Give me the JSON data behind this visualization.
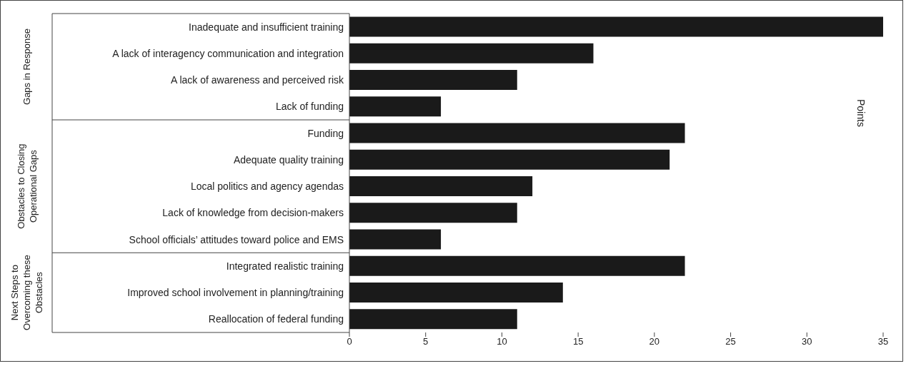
{
  "chart_data": {
    "type": "bar",
    "orientation": "horizontal",
    "categories": [
      "Inadequate and insufficient training",
      "A lack of interagency communication and integration",
      "A lack of awareness and perceived risk",
      "Lack of funding",
      "Funding",
      "Adequate quality training",
      "Local politics and agency agendas",
      "Lack of knowledge from decision-makers",
      "School officials’ attitudes toward police and EMS",
      "Integrated realistic training",
      "Improved school involvement in planning/training",
      "Reallocation of federal funding"
    ],
    "values": [
      35,
      16,
      11,
      6,
      22,
      21,
      12,
      11,
      6,
      22,
      14,
      11
    ],
    "color": "#1a1a1a",
    "xlim": [
      0,
      35
    ],
    "xticks": [
      0,
      5,
      10,
      15,
      20,
      25,
      30,
      35
    ],
    "grid": false,
    "legend": false,
    "annotations": [
      "Gaps in Response",
      "Obstacles to Closing Operational Gaps",
      "Next Steps to Overcoming these Obstacles",
      "Points"
    ]
  }
}
